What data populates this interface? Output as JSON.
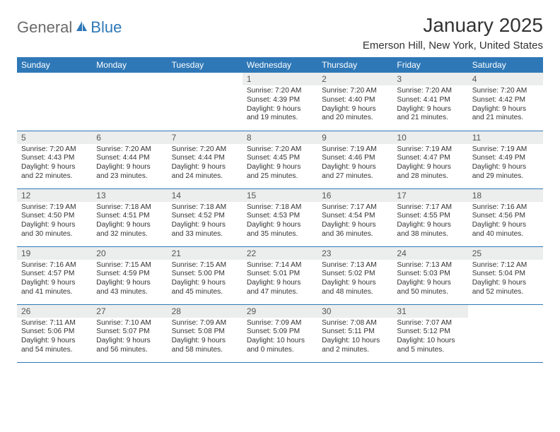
{
  "logo": {
    "part1": "General",
    "part2": "Blue"
  },
  "title": "January 2025",
  "location": "Emerson Hill, New York, United States",
  "colors": {
    "header_bg": "#2f78b7",
    "header_text": "#ffffff",
    "daynum_bg": "#eceded",
    "border": "#2f78b7",
    "logo_gray": "#6b6b6b",
    "logo_blue": "#2f78b7",
    "text": "#333333"
  },
  "dayNames": [
    "Sunday",
    "Monday",
    "Tuesday",
    "Wednesday",
    "Thursday",
    "Friday",
    "Saturday"
  ],
  "startWeekday": 3,
  "daysInMonth": 31,
  "days": {
    "1": {
      "sunrise": "7:20 AM",
      "sunset": "4:39 PM",
      "daylight": "9 hours and 19 minutes."
    },
    "2": {
      "sunrise": "7:20 AM",
      "sunset": "4:40 PM",
      "daylight": "9 hours and 20 minutes."
    },
    "3": {
      "sunrise": "7:20 AM",
      "sunset": "4:41 PM",
      "daylight": "9 hours and 21 minutes."
    },
    "4": {
      "sunrise": "7:20 AM",
      "sunset": "4:42 PM",
      "daylight": "9 hours and 21 minutes."
    },
    "5": {
      "sunrise": "7:20 AM",
      "sunset": "4:43 PM",
      "daylight": "9 hours and 22 minutes."
    },
    "6": {
      "sunrise": "7:20 AM",
      "sunset": "4:44 PM",
      "daylight": "9 hours and 23 minutes."
    },
    "7": {
      "sunrise": "7:20 AM",
      "sunset": "4:44 PM",
      "daylight": "9 hours and 24 minutes."
    },
    "8": {
      "sunrise": "7:20 AM",
      "sunset": "4:45 PM",
      "daylight": "9 hours and 25 minutes."
    },
    "9": {
      "sunrise": "7:19 AM",
      "sunset": "4:46 PM",
      "daylight": "9 hours and 27 minutes."
    },
    "10": {
      "sunrise": "7:19 AM",
      "sunset": "4:47 PM",
      "daylight": "9 hours and 28 minutes."
    },
    "11": {
      "sunrise": "7:19 AM",
      "sunset": "4:49 PM",
      "daylight": "9 hours and 29 minutes."
    },
    "12": {
      "sunrise": "7:19 AM",
      "sunset": "4:50 PM",
      "daylight": "9 hours and 30 minutes."
    },
    "13": {
      "sunrise": "7:18 AM",
      "sunset": "4:51 PM",
      "daylight": "9 hours and 32 minutes."
    },
    "14": {
      "sunrise": "7:18 AM",
      "sunset": "4:52 PM",
      "daylight": "9 hours and 33 minutes."
    },
    "15": {
      "sunrise": "7:18 AM",
      "sunset": "4:53 PM",
      "daylight": "9 hours and 35 minutes."
    },
    "16": {
      "sunrise": "7:17 AM",
      "sunset": "4:54 PM",
      "daylight": "9 hours and 36 minutes."
    },
    "17": {
      "sunrise": "7:17 AM",
      "sunset": "4:55 PM",
      "daylight": "9 hours and 38 minutes."
    },
    "18": {
      "sunrise": "7:16 AM",
      "sunset": "4:56 PM",
      "daylight": "9 hours and 40 minutes."
    },
    "19": {
      "sunrise": "7:16 AM",
      "sunset": "4:57 PM",
      "daylight": "9 hours and 41 minutes."
    },
    "20": {
      "sunrise": "7:15 AM",
      "sunset": "4:59 PM",
      "daylight": "9 hours and 43 minutes."
    },
    "21": {
      "sunrise": "7:15 AM",
      "sunset": "5:00 PM",
      "daylight": "9 hours and 45 minutes."
    },
    "22": {
      "sunrise": "7:14 AM",
      "sunset": "5:01 PM",
      "daylight": "9 hours and 47 minutes."
    },
    "23": {
      "sunrise": "7:13 AM",
      "sunset": "5:02 PM",
      "daylight": "9 hours and 48 minutes."
    },
    "24": {
      "sunrise": "7:13 AM",
      "sunset": "5:03 PM",
      "daylight": "9 hours and 50 minutes."
    },
    "25": {
      "sunrise": "7:12 AM",
      "sunset": "5:04 PM",
      "daylight": "9 hours and 52 minutes."
    },
    "26": {
      "sunrise": "7:11 AM",
      "sunset": "5:06 PM",
      "daylight": "9 hours and 54 minutes."
    },
    "27": {
      "sunrise": "7:10 AM",
      "sunset": "5:07 PM",
      "daylight": "9 hours and 56 minutes."
    },
    "28": {
      "sunrise": "7:09 AM",
      "sunset": "5:08 PM",
      "daylight": "9 hours and 58 minutes."
    },
    "29": {
      "sunrise": "7:09 AM",
      "sunset": "5:09 PM",
      "daylight": "10 hours and 0 minutes."
    },
    "30": {
      "sunrise": "7:08 AM",
      "sunset": "5:11 PM",
      "daylight": "10 hours and 2 minutes."
    },
    "31": {
      "sunrise": "7:07 AM",
      "sunset": "5:12 PM",
      "daylight": "10 hours and 5 minutes."
    }
  },
  "labels": {
    "sunrise": "Sunrise:",
    "sunset": "Sunset:",
    "daylight": "Daylight:"
  }
}
